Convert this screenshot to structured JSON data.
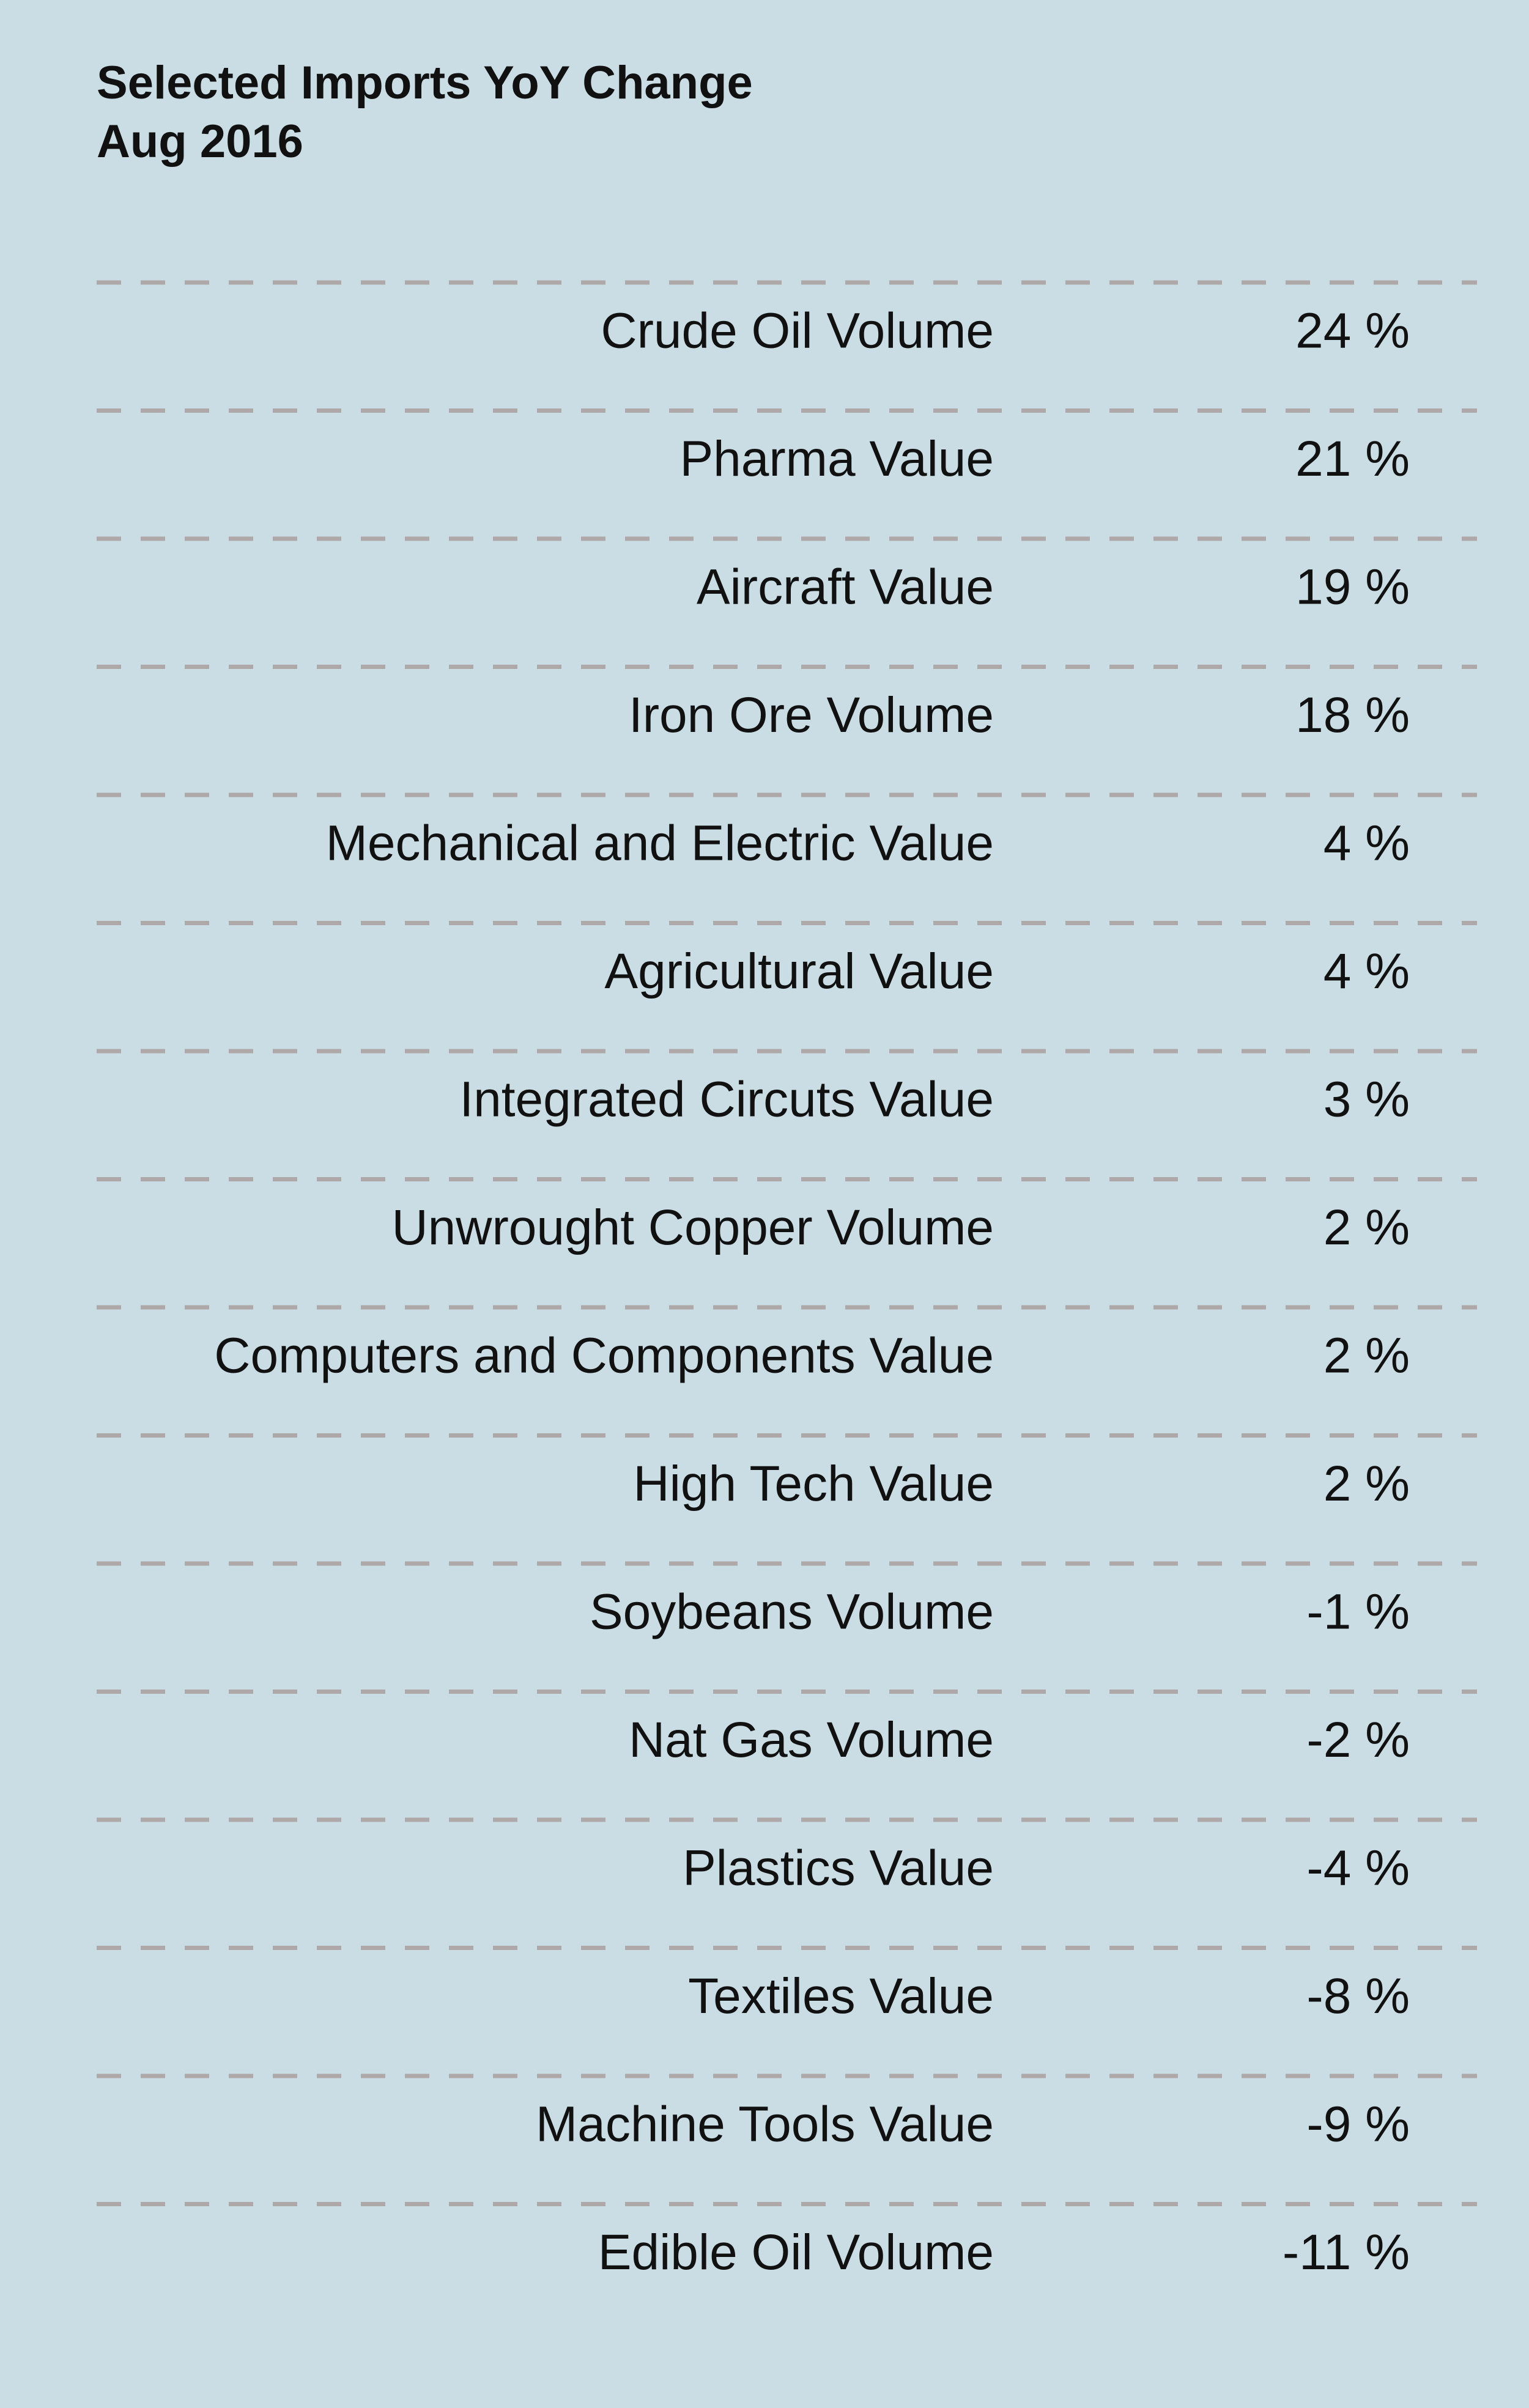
{
  "chart_data": {
    "type": "table",
    "title": "Selected Imports YoY Change",
    "subtitle": "Aug 2016",
    "unit_suffix": " %",
    "categories": [
      "Crude Oil Volume",
      "Pharma Value",
      "Aircraft Value",
      "Iron Ore Volume",
      "Mechanical and Electric Value",
      "Agricultural Value",
      "Integrated Circuts Value",
      "Unwrought Copper Volume",
      "Computers and Components Value",
      "High Tech Value",
      "Soybeans Volume",
      "Nat Gas Volume",
      "Plastics Value",
      "Textiles Value",
      "Machine Tools Value",
      "Edible Oil Volume"
    ],
    "values": [
      24,
      21,
      19,
      18,
      4,
      4,
      3,
      2,
      2,
      2,
      -1,
      -2,
      -4,
      -8,
      -9,
      -11
    ],
    "row_separator": "dashed",
    "colors": {
      "background": "#cadde4",
      "text": "#111111",
      "separator": "#aea8a8"
    }
  }
}
